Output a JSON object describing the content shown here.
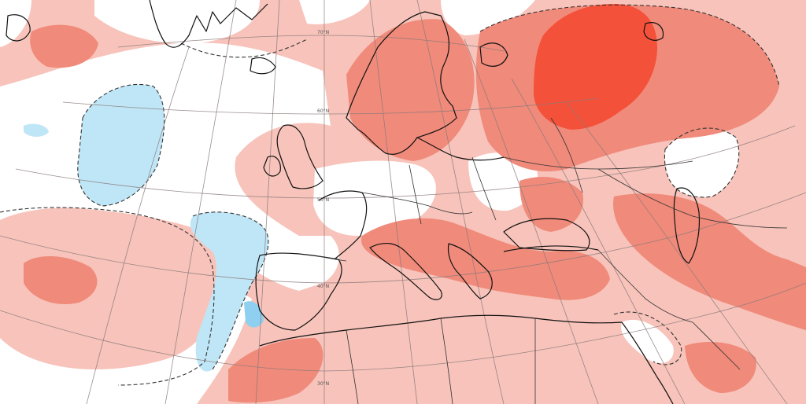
{
  "map": {
    "type": "anomaly-map",
    "colors": {
      "anomaly_strong_positive": "#f4513a",
      "anomaly_positive": "#f08a7a",
      "anomaly_weak_positive": "#f7c3ba",
      "neutral": "#ffffff",
      "anomaly_weak_negative": "#bfe6f7",
      "anomaly_negative": "#8fd0f0"
    },
    "graticule_labels": [
      {
        "id": "lat-70",
        "text": "70°N"
      },
      {
        "id": "lat-60",
        "text": "60°N"
      },
      {
        "id": "lat-50",
        "text": "50°N"
      },
      {
        "id": "lat-40",
        "text": "40°N"
      },
      {
        "id": "lat-30",
        "text": "30°N"
      }
    ]
  }
}
